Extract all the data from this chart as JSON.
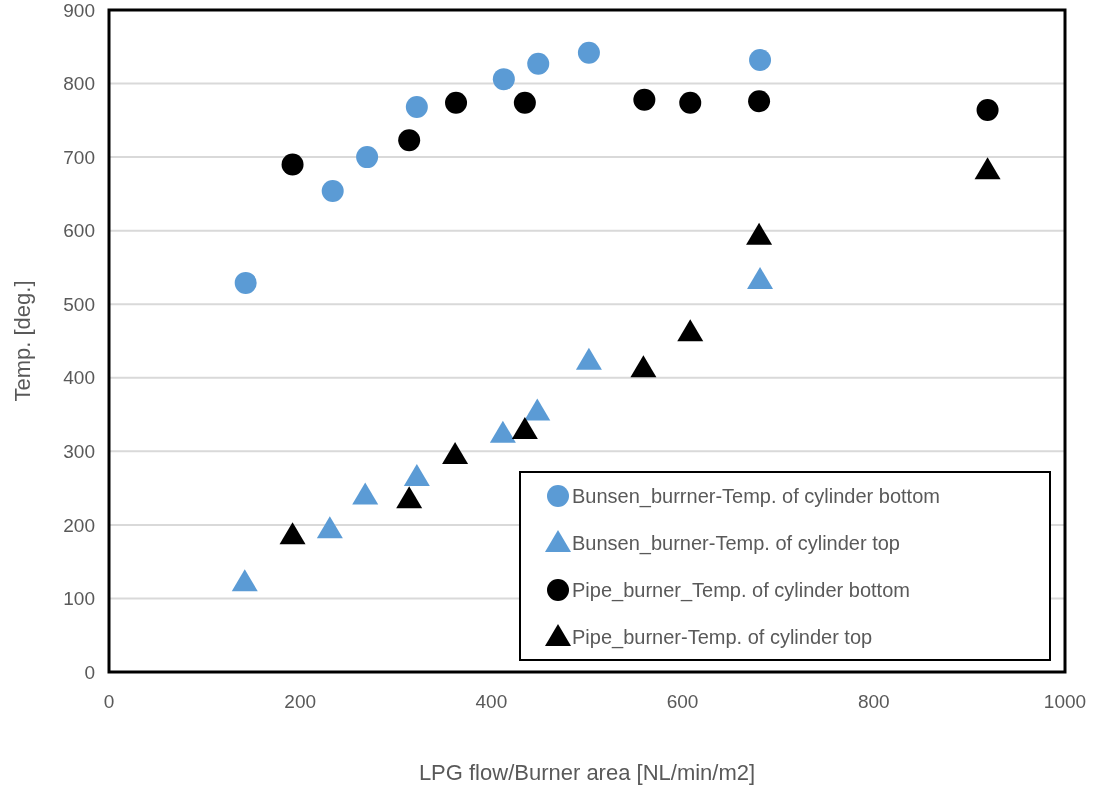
{
  "chart_data": {
    "type": "scatter",
    "xlabel": "LPG flow/Burner area [NL/min/m2]",
    "ylabel": "Temp. [deg.]",
    "xlim": [
      0,
      1000
    ],
    "xticks": [
      0,
      200,
      400,
      600,
      800,
      1000
    ],
    "ylim": [
      0,
      900
    ],
    "yticks": [
      0,
      100,
      200,
      300,
      400,
      500,
      600,
      700,
      800,
      900
    ],
    "grid": "y",
    "legend": "bottom right",
    "series": [
      {
        "name": "Bunsen_burrner-Temp. of cylinder bottom",
        "color": "#5b9bd5",
        "marker": "circle",
        "x": [
          143,
          234,
          270,
          322,
          413,
          449,
          502,
          681
        ],
        "values": [
          529,
          654,
          700,
          768,
          806,
          827,
          842,
          832
        ]
      },
      {
        "name": "Bunsen_burner-Temp. of cylinder top",
        "color": "#5b9bd5",
        "marker": "triangle",
        "x": [
          142,
          231,
          268,
          322,
          412,
          448,
          502,
          681
        ],
        "values": [
          122,
          194,
          240,
          265,
          324,
          354,
          423,
          533
        ]
      },
      {
        "name": "Pipe_burner_Temp. of cylinder bottom",
        "color": "#000000",
        "marker": "circle",
        "x": [
          192,
          314,
          363,
          435,
          560,
          608,
          680,
          919
        ],
        "values": [
          690,
          723,
          774,
          774,
          778,
          774,
          776,
          764
        ]
      },
      {
        "name": "Pipe_burner-Temp. of cylinder top",
        "color": "#000000",
        "marker": "triangle",
        "x": [
          192,
          314,
          362,
          435,
          559,
          608,
          680,
          919
        ],
        "values": [
          186,
          235,
          295,
          329,
          413,
          462,
          593,
          682
        ]
      }
    ]
  }
}
